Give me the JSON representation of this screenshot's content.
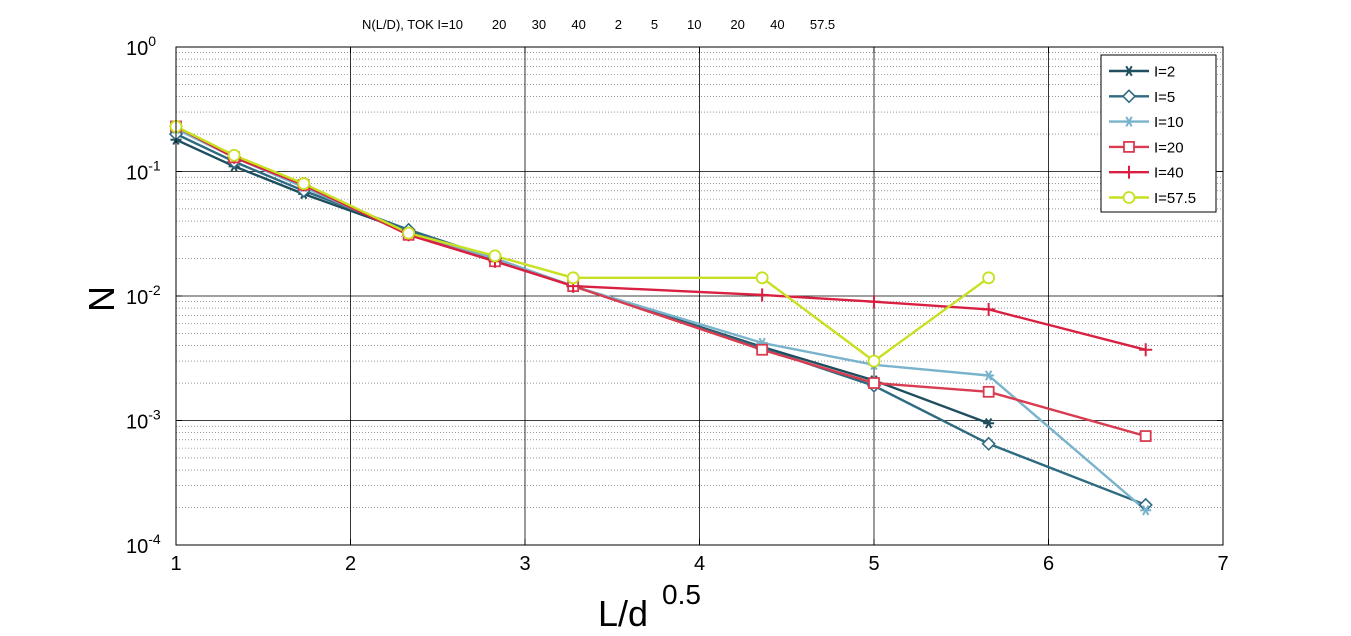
{
  "chart_data": {
    "type": "line",
    "title": "N(L/D), TOK I=10        20       30       40        2        5        10        20       40       57.5",
    "xlabel": "L/d",
    "xlabel_exponent": "0.5",
    "ylabel": "N",
    "yscale": "log",
    "xlim": [
      1,
      7
    ],
    "ylim": [
      0.0001,
      1
    ],
    "x_ticks": [
      "1",
      "2",
      "3",
      "4",
      "5",
      "6",
      "7"
    ],
    "y_ticks": [
      {
        "base": "10",
        "exp": "0"
      },
      {
        "base": "10",
        "exp": "-1"
      },
      {
        "base": "10",
        "exp": "-2"
      },
      {
        "base": "10",
        "exp": "-3"
      },
      {
        "base": "10",
        "exp": "-4"
      }
    ],
    "grid": true,
    "legend_position": "top-right",
    "series": [
      {
        "name": "I=2",
        "color": "#1f4e5f",
        "marker": "star",
        "x": [
          1,
          1.333,
          1.732,
          2.333,
          2.828,
          3.276,
          4.359,
          5,
          5.657
        ],
        "y": [
          0.18,
          0.11,
          0.066,
          0.033,
          0.0195,
          0.012,
          0.0039,
          0.0021,
          0.00095
        ]
      },
      {
        "name": "I=5",
        "color": "#2e6b80",
        "marker": "diamond",
        "x": [
          1,
          1.333,
          1.732,
          2.333,
          2.828,
          3.276,
          4.359,
          5,
          5.657,
          6.557
        ],
        "y": [
          0.2,
          0.12,
          0.07,
          0.034,
          0.02,
          0.012,
          0.0038,
          0.0019,
          0.00065,
          0.00021
        ]
      },
      {
        "name": "I=10",
        "color": "#79b3cc",
        "marker": "star",
        "x": [
          1,
          1.333,
          1.732,
          2.333,
          2.828,
          3.276,
          4.359,
          5,
          5.657,
          6.557
        ],
        "y": [
          0.22,
          0.13,
          0.075,
          0.032,
          0.02,
          0.012,
          0.0042,
          0.0028,
          0.0023,
          0.00019
        ]
      },
      {
        "name": "I=20",
        "color": "#d93c50",
        "marker": "square",
        "x": [
          1,
          1.333,
          1.732,
          2.333,
          2.828,
          3.276,
          4.359,
          5,
          5.657,
          6.557
        ],
        "y": [
          0.23,
          0.13,
          0.078,
          0.031,
          0.019,
          0.012,
          0.0037,
          0.002,
          0.0017,
          0.00075
        ]
      },
      {
        "name": "I=40",
        "color": "#d92040",
        "marker": "plus",
        "x": [
          1,
          1.333,
          1.732,
          2.333,
          2.828,
          3.276,
          4.359,
          5,
          5.657,
          6.557
        ],
        "y": [
          0.23,
          0.13,
          0.078,
          0.031,
          0.019,
          0.012,
          0.0102,
          0.009,
          0.0078,
          0.0037
        ]
      },
      {
        "name": "I=57.5",
        "color": "#c8e020",
        "marker": "circle",
        "x": [
          1,
          1.333,
          1.732,
          2.333,
          2.828,
          3.276,
          4.359,
          5,
          5.657
        ],
        "y": [
          0.23,
          0.135,
          0.08,
          0.032,
          0.021,
          0.014,
          0.014,
          0.003,
          0.014
        ]
      }
    ]
  }
}
